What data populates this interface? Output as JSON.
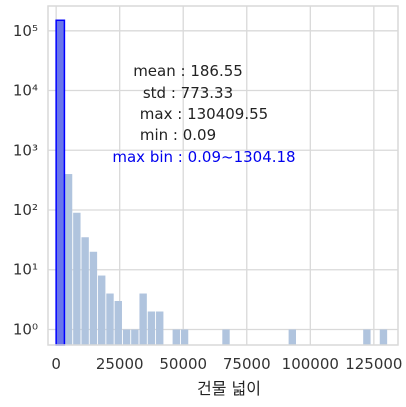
{
  "chart_data": {
    "type": "bar",
    "xlabel": "건물 넓이",
    "ylabel": "",
    "yscale": "log",
    "xlim": [
      -3200,
      134500
    ],
    "ylim": [
      0.55,
      260000
    ],
    "grid": true,
    "bin_width": 3260.24,
    "x_tick_values": [
      0,
      25000,
      50000,
      75000,
      100000,
      125000
    ],
    "x_tick_labels": [
      "0",
      "25000",
      "50000",
      "75000",
      "100000",
      "125000"
    ],
    "y_tick_values": [
      1,
      10,
      100,
      1000,
      10000,
      100000
    ],
    "y_tick_labels": [
      "10⁰",
      "10¹",
      "10²",
      "10³",
      "10⁴",
      "10⁵"
    ],
    "highlight_bin": {
      "x_start": 0.09,
      "x_end": 1304.18,
      "count": 150000,
      "color": "#0000ff"
    },
    "series": [
      {
        "color": "#b0c4de",
        "bins": [
          {
            "x": 0.09,
            "count": 150000
          },
          {
            "x": 3260.33,
            "count": 400
          },
          {
            "x": 6520.57,
            "count": 90
          },
          {
            "x": 9780.81,
            "count": 35
          },
          {
            "x": 13041.05,
            "count": 20
          },
          {
            "x": 16301.29,
            "count": 8
          },
          {
            "x": 19561.53,
            "count": 4
          },
          {
            "x": 22821.77,
            "count": 3
          },
          {
            "x": 26082.01,
            "count": 1
          },
          {
            "x": 29342.25,
            "count": 1
          },
          {
            "x": 32602.49,
            "count": 4
          },
          {
            "x": 35862.73,
            "count": 2
          },
          {
            "x": 39122.97,
            "count": 2
          },
          {
            "x": 45643.45,
            "count": 1
          },
          {
            "x": 48903.69,
            "count": 1
          },
          {
            "x": 65204.89,
            "count": 1
          },
          {
            "x": 91286.81,
            "count": 1
          },
          {
            "x": 120627.97,
            "count": 1
          },
          {
            "x": 127148.45,
            "count": 1
          }
        ]
      }
    ],
    "annotations": {
      "mean": "mean : 186.55",
      "std": "std : 773.33",
      "max": "max : 130409.55",
      "min": "min : 0.09",
      "max_bin": "max bin : 0.09~1304.18"
    }
  },
  "colors": {
    "grid": "#d9d9d9",
    "bar": "#b0c4de",
    "highlight": "#0000ff",
    "highlight_text": "#0000ee"
  }
}
